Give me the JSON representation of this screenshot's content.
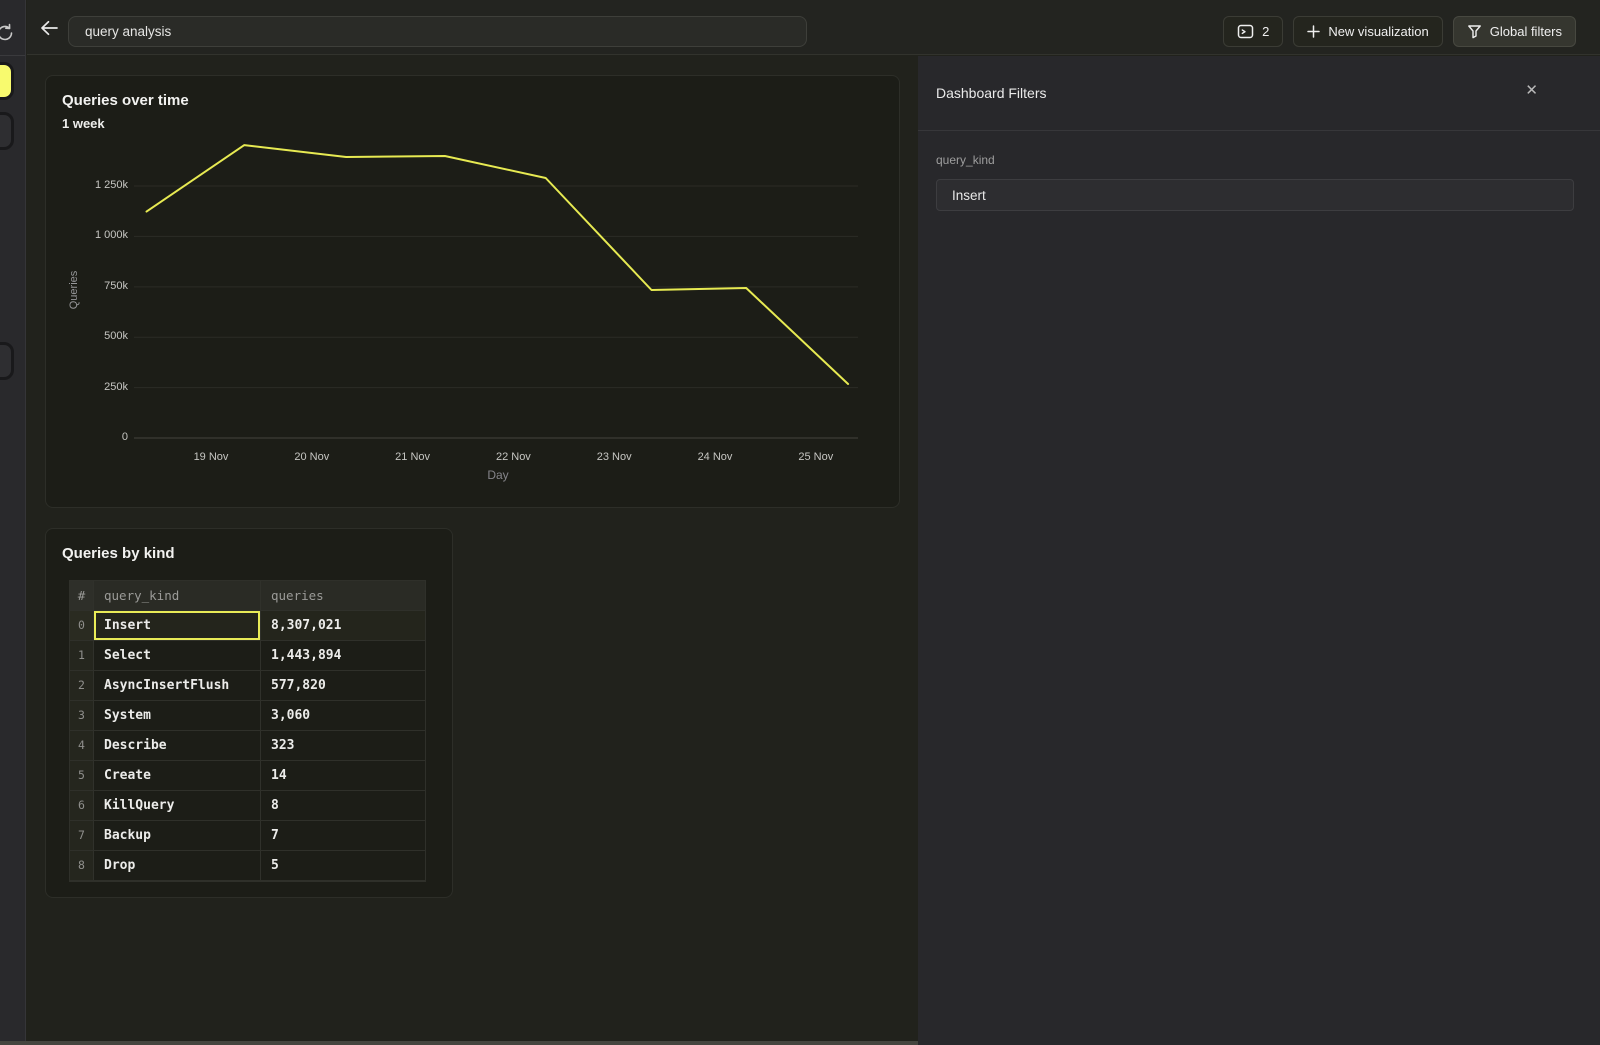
{
  "topbar": {
    "title_value": "query analysis",
    "viz_count": "2",
    "new_viz_label": "New visualization",
    "global_filters_label": "Global filters"
  },
  "chart_data": {
    "type": "line",
    "title": "Queries over time",
    "subtitle": "1 week",
    "xlabel": "Day",
    "ylabel": "Queries",
    "x_tick_labels": [
      "19 Nov",
      "20 Nov",
      "21 Nov",
      "22 Nov",
      "23 Nov",
      "24 Nov",
      "25 Nov"
    ],
    "y_tick_labels": [
      "0",
      "250k",
      "500k",
      "750k",
      "1 000k",
      "1 250k"
    ],
    "y_tick_values": [
      0,
      250000,
      500000,
      750000,
      1000000,
      1250000
    ],
    "ylim": [
      0,
      1523000
    ],
    "grid": true,
    "legend": false,
    "series": [
      {
        "name": "Queries",
        "color": "#e7ea52",
        "x_day_offset_from_19nov": [
          -0.64,
          0.33,
          1.34,
          2.32,
          3.32,
          4.37,
          5.31,
          6.32
        ],
        "values": [
          1123000,
          1453000,
          1394000,
          1399000,
          1290000,
          734000,
          744000,
          268000
        ]
      }
    ]
  },
  "table_card": {
    "title": "Queries by kind",
    "columns": [
      "#",
      "query_kind",
      "queries"
    ],
    "rows": [
      [
        "0",
        "Insert",
        "8,307,021"
      ],
      [
        "1",
        "Select",
        "1,443,894"
      ],
      [
        "2",
        "AsyncInsertFlush",
        "577,820"
      ],
      [
        "3",
        "System",
        "3,060"
      ],
      [
        "4",
        "Describe",
        "323"
      ],
      [
        "5",
        "Create",
        "14"
      ],
      [
        "6",
        "KillQuery",
        "8"
      ],
      [
        "7",
        "Backup",
        "7"
      ],
      [
        "8",
        "Drop",
        "5"
      ]
    ],
    "selected": {
      "row": 0,
      "column": 1
    }
  },
  "filters_panel": {
    "title": "Dashboard Filters",
    "close_glyph": "✕",
    "field_label": "query_kind",
    "field_value": "Insert"
  },
  "colors": {
    "accent_yellow": "#e7ea52",
    "sidebar_active_yellow": "#f8fa6e",
    "panel_bg": "#28282b",
    "card_bg": "#1c1d17"
  }
}
